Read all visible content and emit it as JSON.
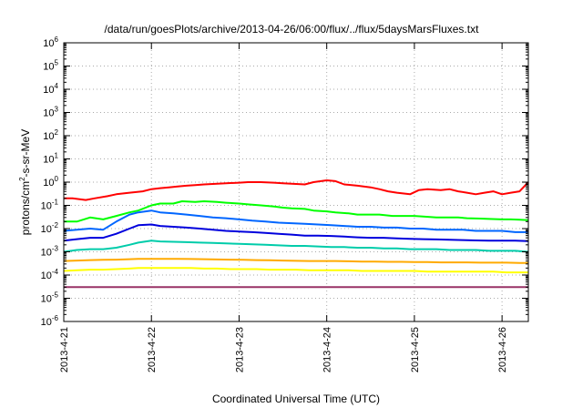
{
  "chart_data": {
    "type": "line",
    "title": "/data/run/goesPlots/archive/2013-04-26/06:00/flux/../flux/5daysMarsFluxes.txt",
    "xlabel": "Coordinated Universal Time (UTC)",
    "ylabel_parts": [
      "protons/cm",
      "2",
      "-s-sr-MeV"
    ],
    "yscale": "log",
    "ylim_exp": [
      -6,
      6
    ],
    "y_ticks": [
      {
        "base": "10",
        "exp": "-6"
      },
      {
        "base": "10",
        "exp": "-5"
      },
      {
        "base": "10",
        "exp": "-4"
      },
      {
        "base": "10",
        "exp": "-3"
      },
      {
        "base": "10",
        "exp": "-2"
      },
      {
        "base": "10",
        "exp": "-1"
      },
      {
        "base": "10",
        "exp": "0"
      },
      {
        "base": "10",
        "exp": "1"
      },
      {
        "base": "10",
        "exp": "2"
      },
      {
        "base": "10",
        "exp": "3"
      },
      {
        "base": "10",
        "exp": "4"
      },
      {
        "base": "10",
        "exp": "5"
      },
      {
        "base": "10",
        "exp": "6"
      }
    ],
    "x_ticks": [
      "2013-4-21",
      "2013-4-22",
      "2013-4-23",
      "2013-4-24",
      "2013-4-25",
      "2013-4-26"
    ],
    "x_range_days": [
      0,
      5.3
    ],
    "grid": true,
    "series": [
      {
        "color": "#ff0000",
        "x": [
          0,
          0.1,
          0.25,
          0.35,
          0.5,
          0.6,
          0.75,
          0.9,
          1.0,
          1.1,
          1.2,
          1.3,
          1.4,
          1.5,
          1.6,
          1.75,
          1.85,
          2.0,
          2.1,
          2.25,
          2.4,
          2.5,
          2.6,
          2.75,
          2.85,
          3.0,
          3.1,
          3.2,
          3.35,
          3.5,
          3.6,
          3.7,
          3.8,
          3.95,
          4.05,
          4.15,
          4.3,
          4.4,
          4.5,
          4.6,
          4.7,
          4.8,
          4.9,
          5.0,
          5.1,
          5.2,
          5.3
        ],
        "y": [
          0.2,
          0.2,
          0.17,
          0.2,
          0.25,
          0.3,
          0.35,
          0.4,
          0.5,
          0.55,
          0.6,
          0.65,
          0.7,
          0.75,
          0.8,
          0.85,
          0.9,
          0.95,
          1.0,
          1.0,
          0.95,
          0.9,
          0.85,
          0.8,
          1.0,
          1.2,
          1.1,
          0.8,
          0.7,
          0.6,
          0.5,
          0.4,
          0.35,
          0.3,
          0.45,
          0.5,
          0.45,
          0.5,
          0.4,
          0.35,
          0.3,
          0.35,
          0.4,
          0.3,
          0.35,
          0.4,
          1.0
        ]
      },
      {
        "color": "#00ff00",
        "x": [
          0,
          0.15,
          0.3,
          0.45,
          0.6,
          0.75,
          0.85,
          1.0,
          1.1,
          1.25,
          1.35,
          1.5,
          1.6,
          1.75,
          1.85,
          2.0,
          2.1,
          2.25,
          2.4,
          2.5,
          2.6,
          2.75,
          2.85,
          3.0,
          3.1,
          3.25,
          3.35,
          3.5,
          3.6,
          3.75,
          3.85,
          4.0,
          4.1,
          4.25,
          4.35,
          4.5,
          4.6,
          4.75,
          4.85,
          5.0,
          5.1,
          5.2,
          5.3
        ],
        "y": [
          0.02,
          0.02,
          0.03,
          0.025,
          0.035,
          0.05,
          0.06,
          0.1,
          0.12,
          0.12,
          0.15,
          0.14,
          0.15,
          0.14,
          0.13,
          0.12,
          0.11,
          0.1,
          0.09,
          0.08,
          0.075,
          0.07,
          0.06,
          0.055,
          0.05,
          0.045,
          0.04,
          0.04,
          0.04,
          0.035,
          0.035,
          0.035,
          0.033,
          0.03,
          0.03,
          0.03,
          0.028,
          0.027,
          0.026,
          0.025,
          0.025,
          0.024,
          0.023
        ]
      },
      {
        "color": "#0066ff",
        "x": [
          0,
          0.15,
          0.3,
          0.45,
          0.6,
          0.75,
          0.85,
          1.0,
          1.1,
          1.25,
          1.4,
          1.55,
          1.7,
          1.85,
          2.0,
          2.15,
          2.3,
          2.45,
          2.6,
          2.75,
          2.9,
          3.05,
          3.2,
          3.35,
          3.5,
          3.65,
          3.8,
          3.95,
          4.1,
          4.25,
          4.4,
          4.55,
          4.7,
          4.85,
          5.0,
          5.15,
          5.3
        ],
        "y": [
          0.008,
          0.009,
          0.01,
          0.009,
          0.02,
          0.04,
          0.05,
          0.06,
          0.05,
          0.045,
          0.04,
          0.035,
          0.03,
          0.028,
          0.025,
          0.022,
          0.02,
          0.018,
          0.017,
          0.016,
          0.015,
          0.014,
          0.013,
          0.012,
          0.012,
          0.011,
          0.011,
          0.01,
          0.01,
          0.009,
          0.009,
          0.009,
          0.008,
          0.008,
          0.008,
          0.007,
          0.007
        ]
      },
      {
        "color": "#0000dd",
        "x": [
          0,
          0.15,
          0.3,
          0.45,
          0.6,
          0.75,
          0.85,
          1.0,
          1.1,
          1.25,
          1.4,
          1.55,
          1.7,
          1.85,
          2.0,
          2.15,
          2.3,
          2.45,
          2.6,
          2.75,
          2.9,
          3.05,
          3.2,
          3.35,
          3.5,
          3.65,
          3.8,
          3.95,
          4.1,
          4.25,
          4.4,
          4.55,
          4.7,
          4.85,
          5.0,
          5.15,
          5.3
        ],
        "y": [
          0.003,
          0.0035,
          0.004,
          0.004,
          0.006,
          0.01,
          0.014,
          0.015,
          0.013,
          0.012,
          0.011,
          0.01,
          0.009,
          0.008,
          0.0075,
          0.007,
          0.0065,
          0.006,
          0.0055,
          0.005,
          0.005,
          0.0048,
          0.0045,
          0.0042,
          0.004,
          0.004,
          0.0038,
          0.0036,
          0.0035,
          0.0034,
          0.0033,
          0.0032,
          0.0031,
          0.003,
          0.003,
          0.003,
          0.0029
        ]
      },
      {
        "color": "#00ccaa",
        "x": [
          0,
          0.15,
          0.3,
          0.45,
          0.6,
          0.75,
          0.85,
          1.0,
          1.1,
          1.25,
          1.4,
          1.55,
          1.7,
          1.85,
          2.0,
          2.15,
          2.3,
          2.45,
          2.6,
          2.75,
          2.9,
          3.05,
          3.2,
          3.35,
          3.5,
          3.65,
          3.8,
          3.95,
          4.1,
          4.25,
          4.4,
          4.55,
          4.7,
          4.85,
          5.0,
          5.15,
          5.3
        ],
        "y": [
          0.001,
          0.0012,
          0.0013,
          0.0013,
          0.0015,
          0.002,
          0.0025,
          0.003,
          0.0028,
          0.0027,
          0.0026,
          0.0025,
          0.0024,
          0.0023,
          0.0022,
          0.0021,
          0.002,
          0.0019,
          0.0018,
          0.0018,
          0.0017,
          0.0016,
          0.0016,
          0.0015,
          0.0015,
          0.0014,
          0.0014,
          0.0013,
          0.0013,
          0.0013,
          0.0012,
          0.0012,
          0.0012,
          0.0011,
          0.0011,
          0.0011,
          0.001
        ]
      },
      {
        "color": "#ffaa00",
        "x": [
          0,
          0.15,
          0.3,
          0.45,
          0.6,
          0.75,
          0.85,
          1.0,
          1.15,
          1.3,
          1.45,
          1.6,
          1.75,
          1.9,
          2.05,
          2.2,
          2.35,
          2.5,
          2.65,
          2.8,
          2.95,
          3.1,
          3.25,
          3.4,
          3.55,
          3.7,
          3.85,
          4.0,
          4.15,
          4.3,
          4.45,
          4.6,
          4.75,
          4.9,
          5.05,
          5.2,
          5.3
        ],
        "y": [
          0.0004,
          0.00042,
          0.00044,
          0.00045,
          0.00046,
          0.00048,
          0.0005,
          0.0005,
          0.0005,
          0.0005,
          0.00049,
          0.00048,
          0.00047,
          0.00046,
          0.00045,
          0.00044,
          0.00043,
          0.00042,
          0.00041,
          0.0004,
          0.0004,
          0.0004,
          0.00039,
          0.00038,
          0.00038,
          0.00037,
          0.00037,
          0.00036,
          0.00036,
          0.00035,
          0.00035,
          0.00035,
          0.00034,
          0.00034,
          0.00034,
          0.00033,
          0.00033
        ]
      },
      {
        "color": "#ffff00",
        "x": [
          0,
          0.15,
          0.3,
          0.45,
          0.6,
          0.75,
          0.85,
          1.0,
          1.15,
          1.3,
          1.45,
          1.6,
          1.75,
          1.9,
          2.05,
          2.2,
          2.35,
          2.5,
          2.65,
          2.8,
          2.95,
          3.1,
          3.25,
          3.4,
          3.55,
          3.7,
          3.85,
          4.0,
          4.15,
          4.3,
          4.45,
          4.6,
          4.75,
          4.9,
          5.05,
          5.2,
          5.3
        ],
        "y": [
          0.00015,
          0.00016,
          0.00017,
          0.00017,
          0.00018,
          0.00019,
          0.0002,
          0.0002,
          0.0002,
          0.0002,
          0.0002,
          0.00019,
          0.00019,
          0.00018,
          0.00018,
          0.00018,
          0.00017,
          0.00017,
          0.00017,
          0.00016,
          0.00016,
          0.00016,
          0.00016,
          0.00015,
          0.00015,
          0.00015,
          0.00015,
          0.00015,
          0.00014,
          0.00014,
          0.00014,
          0.00014,
          0.00014,
          0.00014,
          0.00013,
          0.00013,
          0.00013
        ]
      },
      {
        "color": "#993366",
        "x": [
          0,
          0.15,
          0.3,
          0.45,
          0.6,
          0.75,
          0.85,
          1.0,
          1.15,
          1.3,
          1.45,
          1.6,
          1.75,
          1.9,
          2.05,
          2.2,
          2.35,
          2.5,
          2.65,
          2.8,
          2.95,
          3.1,
          3.25,
          3.4,
          3.55,
          3.7,
          3.85,
          4.0,
          4.15,
          4.3,
          4.45,
          4.6,
          4.75,
          4.9,
          5.05,
          5.2,
          5.3
        ],
        "y": [
          3e-05,
          3e-05,
          3e-05,
          3e-05,
          3e-05,
          3e-05,
          3e-05,
          3e-05,
          3e-05,
          3e-05,
          3e-05,
          3e-05,
          3e-05,
          3e-05,
          3e-05,
          3e-05,
          3e-05,
          3e-05,
          3e-05,
          3e-05,
          3e-05,
          3e-05,
          3e-05,
          3e-05,
          3e-05,
          3e-05,
          3e-05,
          3e-05,
          3e-05,
          3e-05,
          3e-05,
          3e-05,
          3e-05,
          3e-05,
          3e-05,
          3e-05,
          3e-05
        ]
      }
    ]
  }
}
